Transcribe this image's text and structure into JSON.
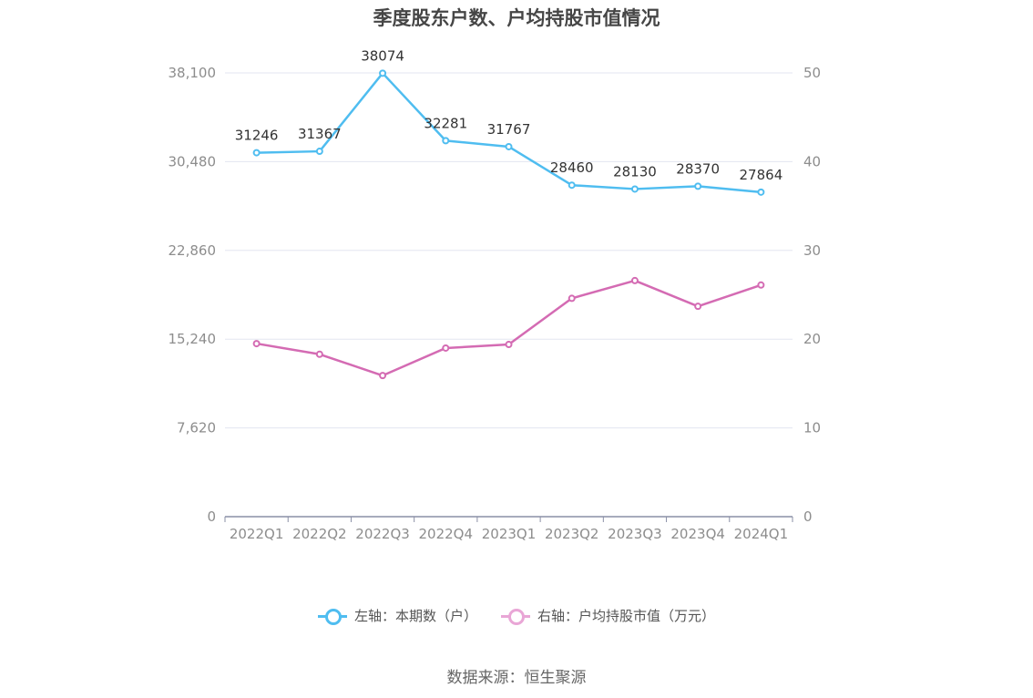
{
  "chart_data": {
    "type": "line",
    "title": "季度股东户数、户均持股市值情况",
    "categories": [
      "2022Q1",
      "2022Q2",
      "2022Q3",
      "2022Q4",
      "2023Q1",
      "2023Q2",
      "2023Q3",
      "2023Q4",
      "2024Q1"
    ],
    "series": [
      {
        "name": "左轴：本期数（户）",
        "axis": "left",
        "color": "#4fbdf0",
        "values": [
          31246,
          31367,
          38074,
          32281,
          31767,
          28460,
          28130,
          28370,
          27864
        ],
        "show_labels": true
      },
      {
        "name": "右轴：户均持股市值（万元）",
        "axis": "right",
        "color": "#d46bb3",
        "values": [
          19.5,
          18.3,
          15.9,
          19.0,
          19.4,
          24.6,
          26.6,
          23.7,
          26.1
        ],
        "show_labels": false
      }
    ],
    "left_axis": {
      "ticks": [
        0,
        7620,
        15240,
        22860,
        30480,
        38100
      ],
      "tick_labels": [
        "0",
        "7,620",
        "15,240",
        "22,860",
        "30,480",
        "38,100"
      ],
      "ylim": [
        0,
        38100
      ]
    },
    "right_axis": {
      "ticks": [
        0,
        10,
        20,
        30,
        40,
        50
      ],
      "tick_labels": [
        "0",
        "10",
        "20",
        "30",
        "40",
        "50"
      ],
      "ylim": [
        0,
        50
      ]
    },
    "grid": true,
    "legend_position": "bottom"
  },
  "legend": {
    "left_label": "左轴：本期数（户）",
    "right_label": "右轴：户均持股市值（万元）",
    "left_color": "#4fbdf0",
    "right_color": "#e9a6d6"
  },
  "source": "数据来源：恒生聚源"
}
